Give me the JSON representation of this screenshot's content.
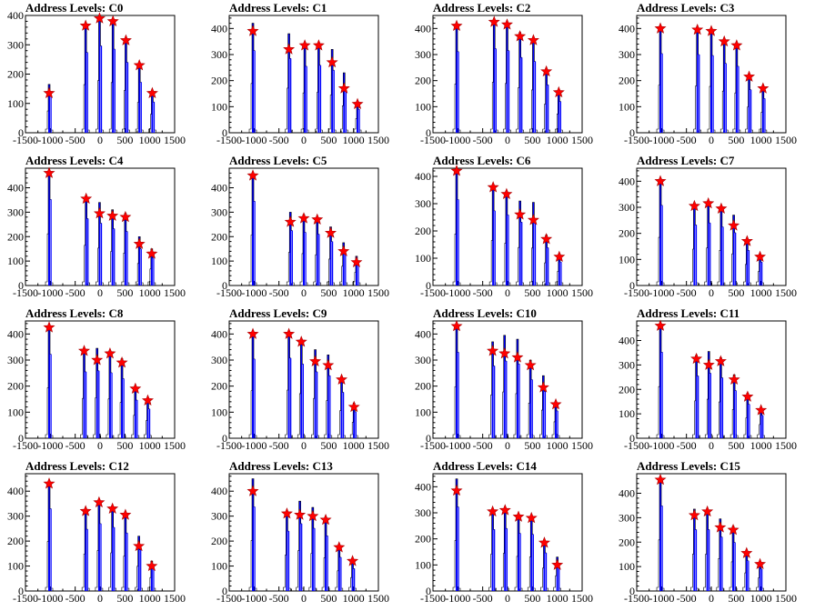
{
  "colors": {
    "histogram": "#0000ff",
    "outline": "#000000",
    "marker_fill": "#ff0000",
    "marker_stroke": "#aa0000",
    "frame": "#000000"
  },
  "chart_data": [
    {
      "type": "bar",
      "title": "Address Levels: C0",
      "xlim": [
        -1500,
        1500
      ],
      "ylim": [
        0,
        400
      ],
      "x_ticks": [
        -1500,
        -1000,
        -500,
        0,
        500,
        1000,
        1500
      ],
      "y_ticks": [
        0,
        100,
        200,
        300,
        400
      ],
      "x_tick_labels": [
        "-1500",
        "-1000",
        "-500",
        "0",
        "500",
        "1000",
        "1500"
      ],
      "y_tick_labels": [
        "0",
        "100",
        "200",
        "300",
        "400"
      ],
      "peaks": {
        "x": [
          -1024,
          -290,
          -10,
          260,
          520,
          790,
          1050
        ],
        "y": [
          165,
          365,
          395,
          380,
          320,
          230,
          140
        ]
      },
      "markers": {
        "x": [
          -1024,
          -290,
          -10,
          260,
          520,
          790,
          1050
        ],
        "y": [
          135,
          365,
          390,
          380,
          315,
          230,
          135
        ]
      }
    },
    {
      "type": "bar",
      "title": "Address Levels: C1",
      "xlim": [
        -1500,
        1500
      ],
      "ylim": [
        0,
        450
      ],
      "x_ticks": [
        -1500,
        -1000,
        -500,
        0,
        500,
        1000,
        1500
      ],
      "y_ticks": [
        0,
        100,
        200,
        300,
        400
      ],
      "x_tick_labels": [
        "-1500",
        "-1000",
        "-500",
        "0",
        "500",
        "1000",
        "1500"
      ],
      "y_tick_labels": [
        "0",
        "100",
        "200",
        "300",
        "400"
      ],
      "peaks": {
        "x": [
          -1024,
          -300,
          20,
          300,
          570,
          810,
          1080
        ],
        "y": [
          420,
          380,
          340,
          345,
          320,
          230,
          120
        ]
      },
      "markers": {
        "x": [
          -1024,
          -300,
          20,
          300,
          570,
          810,
          1080
        ],
        "y": [
          390,
          320,
          335,
          335,
          270,
          170,
          110
        ]
      }
    },
    {
      "type": "bar",
      "title": "Address Levels: C2",
      "xlim": [
        -1500,
        1500
      ],
      "ylim": [
        0,
        450
      ],
      "x_ticks": [
        -1500,
        -1000,
        -500,
        0,
        500,
        1000,
        1500
      ],
      "y_ticks": [
        0,
        100,
        200,
        300,
        400
      ],
      "x_tick_labels": [
        "-1500",
        "-1000",
        "-500",
        "0",
        "500",
        "1000",
        "1500"
      ],
      "y_tick_labels": [
        "0",
        "100",
        "200",
        "300",
        "400"
      ],
      "peaks": {
        "x": [
          -1024,
          -270,
          -10,
          250,
          520,
          780,
          1030
        ],
        "y": [
          415,
          430,
          420,
          385,
          365,
          245,
          160
        ]
      },
      "markers": {
        "x": [
          -1024,
          -270,
          -10,
          250,
          520,
          780,
          1030
        ],
        "y": [
          410,
          425,
          415,
          370,
          355,
          235,
          155
        ]
      }
    },
    {
      "type": "bar",
      "title": "Address Levels: C3",
      "xlim": [
        -1500,
        1500
      ],
      "ylim": [
        0,
        450
      ],
      "x_ticks": [
        -1500,
        -1000,
        -500,
        0,
        500,
        1000,
        1500
      ],
      "y_ticks": [
        0,
        100,
        200,
        300,
        400
      ],
      "x_tick_labels": [
        "-1500",
        "-1000",
        "-500",
        "0",
        "500",
        "1000",
        "1500"
      ],
      "y_tick_labels": [
        "0",
        "100",
        "200",
        "300",
        "400"
      ],
      "peaks": {
        "x": [
          -1024,
          -280,
          0,
          260,
          510,
          760,
          1040
        ],
        "y": [
          405,
          400,
          395,
          355,
          340,
          220,
          175
        ]
      },
      "markers": {
        "x": [
          -1024,
          -280,
          0,
          260,
          510,
          760,
          1040
        ],
        "y": [
          400,
          395,
          390,
          350,
          335,
          215,
          170
        ]
      }
    },
    {
      "type": "bar",
      "title": "Address Levels: C4",
      "xlim": [
        -1500,
        1500
      ],
      "ylim": [
        0,
        480
      ],
      "x_ticks": [
        -1500,
        -1000,
        -500,
        0,
        500,
        1000,
        1500
      ],
      "y_ticks": [
        0,
        100,
        200,
        300,
        400
      ],
      "x_tick_labels": [
        "-1500",
        "-1000",
        "-500",
        "0",
        "500",
        "1000",
        "1500"
      ],
      "y_tick_labels": [
        "0",
        "100",
        "200",
        "300",
        "400"
      ],
      "peaks": {
        "x": [
          -1024,
          -280,
          -10,
          250,
          510,
          790,
          1040
        ],
        "y": [
          470,
          365,
          340,
          310,
          295,
          200,
          150
        ]
      },
      "markers": {
        "x": [
          -1024,
          -280,
          -10,
          250,
          510,
          790,
          1040
        ],
        "y": [
          460,
          355,
          295,
          285,
          280,
          170,
          130
        ]
      }
    },
    {
      "type": "bar",
      "title": "Address Levels: C5",
      "xlim": [
        -1500,
        1500
      ],
      "ylim": [
        0,
        480
      ],
      "x_ticks": [
        -1500,
        -1000,
        -500,
        0,
        500,
        1000,
        1500
      ],
      "y_ticks": [
        0,
        100,
        200,
        300,
        400
      ],
      "x_tick_labels": [
        "-1500",
        "-1000",
        "-500",
        "0",
        "500",
        "1000",
        "1500"
      ],
      "y_tick_labels": [
        "0",
        "100",
        "200",
        "300",
        "400"
      ],
      "peaks": {
        "x": [
          -1024,
          -270,
          0,
          270,
          540,
          800,
          1060
        ],
        "y": [
          460,
          300,
          290,
          280,
          240,
          175,
          120
        ]
      },
      "markers": {
        "x": [
          -1024,
          -270,
          0,
          270,
          540,
          800,
          1060
        ],
        "y": [
          450,
          260,
          275,
          270,
          215,
          140,
          95
        ]
      }
    },
    {
      "type": "bar",
      "title": "Address Levels: C6",
      "xlim": [
        -1500,
        1500
      ],
      "ylim": [
        0,
        430
      ],
      "x_ticks": [
        -1500,
        -1000,
        -500,
        0,
        500,
        1000,
        1500
      ],
      "y_ticks": [
        0,
        100,
        200,
        300,
        400
      ],
      "x_tick_labels": [
        "-1500",
        "-1000",
        "-500",
        "0",
        "500",
        "1000",
        "1500"
      ],
      "y_tick_labels": [
        "0",
        "100",
        "200",
        "300",
        "400"
      ],
      "peaks": {
        "x": [
          -1024,
          -290,
          -20,
          250,
          520,
          780,
          1040
        ],
        "y": [
          420,
          365,
          345,
          310,
          305,
          185,
          115
        ]
      },
      "markers": {
        "x": [
          -1024,
          -290,
          -20,
          250,
          520,
          780,
          1040
        ],
        "y": [
          420,
          360,
          335,
          260,
          240,
          170,
          105
        ]
      }
    },
    {
      "type": "bar",
      "title": "Address Levels: C7",
      "xlim": [
        -1500,
        1500
      ],
      "ylim": [
        0,
        450
      ],
      "x_ticks": [
        -1500,
        -1000,
        -500,
        0,
        500,
        1000,
        1500
      ],
      "y_ticks": [
        0,
        100,
        200,
        300,
        400
      ],
      "x_tick_labels": [
        "-1500",
        "-1000",
        "-500",
        "0",
        "500",
        "1000",
        "1500"
      ],
      "y_tick_labels": [
        "0",
        "100",
        "200",
        "300",
        "400"
      ],
      "peaks": {
        "x": [
          -1024,
          -340,
          -60,
          200,
          450,
          720,
          980
        ],
        "y": [
          410,
          310,
          320,
          300,
          270,
          180,
          120
        ]
      },
      "markers": {
        "x": [
          -1024,
          -340,
          -60,
          200,
          450,
          720,
          980
        ],
        "y": [
          400,
          305,
          315,
          295,
          230,
          170,
          110
        ]
      }
    },
    {
      "type": "bar",
      "title": "Address Levels: C8",
      "xlim": [
        -1500,
        1500
      ],
      "ylim": [
        0,
        450
      ],
      "x_ticks": [
        -1500,
        -1000,
        -500,
        0,
        500,
        1000,
        1500
      ],
      "y_ticks": [
        0,
        100,
        200,
        300,
        400
      ],
      "x_tick_labels": [
        "-1500",
        "-1000",
        "-500",
        "0",
        "500",
        "1000",
        "1500"
      ],
      "y_tick_labels": [
        "0",
        "100",
        "200",
        "300",
        "400"
      ],
      "peaks": {
        "x": [
          -1024,
          -320,
          -60,
          200,
          440,
          710,
          960
        ],
        "y": [
          430,
          340,
          345,
          335,
          305,
          195,
          150
        ]
      },
      "markers": {
        "x": [
          -1024,
          -320,
          -60,
          200,
          440,
          710,
          960
        ],
        "y": [
          425,
          335,
          300,
          325,
          290,
          190,
          145
        ]
      }
    },
    {
      "type": "bar",
      "title": "Address Levels: C9",
      "xlim": [
        -1500,
        1500
      ],
      "ylim": [
        0,
        450
      ],
      "x_ticks": [
        -1500,
        -1000,
        -500,
        0,
        500,
        1000,
        1500
      ],
      "y_ticks": [
        0,
        100,
        200,
        300,
        400
      ],
      "x_tick_labels": [
        "-1500",
        "-1000",
        "-500",
        "0",
        "500",
        "1000",
        "1500"
      ],
      "y_tick_labels": [
        "0",
        "100",
        "200",
        "300",
        "400"
      ],
      "peaks": {
        "x": [
          -1024,
          -300,
          -50,
          230,
          490,
          760,
          1010
        ],
        "y": [
          405,
          410,
          380,
          340,
          320,
          235,
          135
        ]
      },
      "markers": {
        "x": [
          -1024,
          -300,
          -50,
          230,
          490,
          760,
          1010
        ],
        "y": [
          400,
          400,
          370,
          295,
          280,
          225,
          120
        ]
      }
    },
    {
      "type": "bar",
      "title": "Address Levels: C10",
      "xlim": [
        -1500,
        1500
      ],
      "ylim": [
        0,
        450
      ],
      "x_ticks": [
        -1500,
        -1000,
        -500,
        0,
        500,
        1000,
        1500
      ],
      "y_ticks": [
        0,
        100,
        200,
        300,
        400
      ],
      "x_tick_labels": [
        "-1500",
        "-1000",
        "-500",
        "0",
        "500",
        "1000",
        "1500"
      ],
      "y_tick_labels": [
        "0",
        "100",
        "200",
        "300",
        "400"
      ],
      "peaks": {
        "x": [
          -1024,
          -300,
          -60,
          200,
          460,
          720,
          970
        ],
        "y": [
          440,
          370,
          395,
          380,
          300,
          240,
          140
        ]
      },
      "markers": {
        "x": [
          -1024,
          -300,
          -60,
          200,
          460,
          720,
          970
        ],
        "y": [
          430,
          335,
          325,
          310,
          280,
          195,
          130
        ]
      }
    },
    {
      "type": "bar",
      "title": "Address Levels: C11",
      "xlim": [
        -1500,
        1500
      ],
      "ylim": [
        0,
        480
      ],
      "x_ticks": [
        -1500,
        -1000,
        -500,
        0,
        500,
        1000,
        1500
      ],
      "y_ticks": [
        0,
        100,
        200,
        300,
        400
      ],
      "x_tick_labels": [
        "-1500",
        "-1000",
        "-500",
        "0",
        "500",
        "1000",
        "1500"
      ],
      "y_tick_labels": [
        "0",
        "100",
        "200",
        "300",
        "400"
      ],
      "peaks": {
        "x": [
          -1024,
          -300,
          -50,
          190,
          460,
          730,
          1000
        ],
        "y": [
          470,
          340,
          355,
          330,
          260,
          185,
          125
        ]
      },
      "markers": {
        "x": [
          -1024,
          -300,
          -50,
          190,
          460,
          730,
          1000
        ],
        "y": [
          460,
          325,
          300,
          315,
          240,
          170,
          115
        ]
      }
    },
    {
      "type": "bar",
      "title": "Address Levels: C12",
      "xlim": [
        -1500,
        1500
      ],
      "ylim": [
        0,
        470
      ],
      "x_ticks": [
        -1500,
        -1000,
        -500,
        0,
        500,
        1000,
        1500
      ],
      "y_ticks": [
        0,
        100,
        200,
        300,
        400
      ],
      "x_tick_labels": [
        "-1500",
        "-1000",
        "-500",
        "0",
        "500",
        "1000",
        "1500"
      ],
      "y_tick_labels": [
        "0",
        "100",
        "200",
        "300",
        "400"
      ],
      "peaks": {
        "x": [
          -1024,
          -290,
          -20,
          250,
          510,
          780,
          1040
        ],
        "y": [
          440,
          330,
          360,
          340,
          310,
          220,
          120
        ]
      },
      "markers": {
        "x": [
          -1024,
          -290,
          -20,
          250,
          510,
          780,
          1040
        ],
        "y": [
          430,
          320,
          355,
          330,
          305,
          180,
          100
        ]
      }
    },
    {
      "type": "bar",
      "title": "Address Levels: C13",
      "xlim": [
        -1500,
        1500
      ],
      "ylim": [
        0,
        470
      ],
      "x_ticks": [
        -1500,
        -1000,
        -500,
        0,
        500,
        1000,
        1500
      ],
      "y_ticks": [
        0,
        100,
        200,
        300,
        400
      ],
      "x_tick_labels": [
        "-1500",
        "-1000",
        "-500",
        "0",
        "500",
        "1000",
        "1500"
      ],
      "y_tick_labels": [
        "0",
        "100",
        "200",
        "300",
        "400"
      ],
      "peaks": {
        "x": [
          -1024,
          -340,
          -80,
          180,
          440,
          710,
          980
        ],
        "y": [
          450,
          320,
          360,
          335,
          295,
          180,
          120
        ]
      },
      "markers": {
        "x": [
          -1024,
          -340,
          -80,
          180,
          440,
          710,
          980
        ],
        "y": [
          400,
          310,
          305,
          300,
          285,
          175,
          120
        ]
      }
    },
    {
      "type": "bar",
      "title": "Address Levels: C14",
      "xlim": [
        -1500,
        1500
      ],
      "ylim": [
        0,
        450
      ],
      "x_ticks": [
        -1500,
        -1000,
        -500,
        0,
        500,
        1000,
        1500
      ],
      "y_ticks": [
        0,
        100,
        200,
        300,
        400
      ],
      "x_tick_labels": [
        "-1500",
        "-1000",
        "-500",
        "0",
        "500",
        "1000",
        "1500"
      ],
      "y_tick_labels": [
        "0",
        "100",
        "200",
        "300",
        "400"
      ],
      "peaks": {
        "x": [
          -1024,
          -300,
          -50,
          220,
          480,
          740,
          1000
        ],
        "y": [
          430,
          315,
          320,
          295,
          290,
          195,
          130
        ]
      },
      "markers": {
        "x": [
          -1024,
          -300,
          -50,
          220,
          480,
          740,
          1000
        ],
        "y": [
          385,
          305,
          310,
          285,
          280,
          185,
          100
        ]
      }
    },
    {
      "type": "bar",
      "title": "Address Levels: C15",
      "xlim": [
        -1500,
        1500
      ],
      "ylim": [
        0,
        480
      ],
      "x_ticks": [
        -1500,
        -1000,
        -500,
        0,
        500,
        1000,
        1500
      ],
      "y_ticks": [
        0,
        100,
        200,
        300,
        400
      ],
      "x_tick_labels": [
        "-1500",
        "-1000",
        "-500",
        "0",
        "500",
        "1000",
        "1500"
      ],
      "y_tick_labels": [
        "0",
        "100",
        "200",
        "300",
        "400"
      ],
      "peaks": {
        "x": [
          -1024,
          -340,
          -80,
          180,
          440,
          710,
          980
        ],
        "y": [
          465,
          335,
          335,
          295,
          265,
          165,
          120
        ]
      },
      "markers": {
        "x": [
          -1024,
          -340,
          -80,
          180,
          440,
          710,
          980
        ],
        "y": [
          455,
          310,
          325,
          260,
          250,
          155,
          110
        ]
      }
    }
  ]
}
